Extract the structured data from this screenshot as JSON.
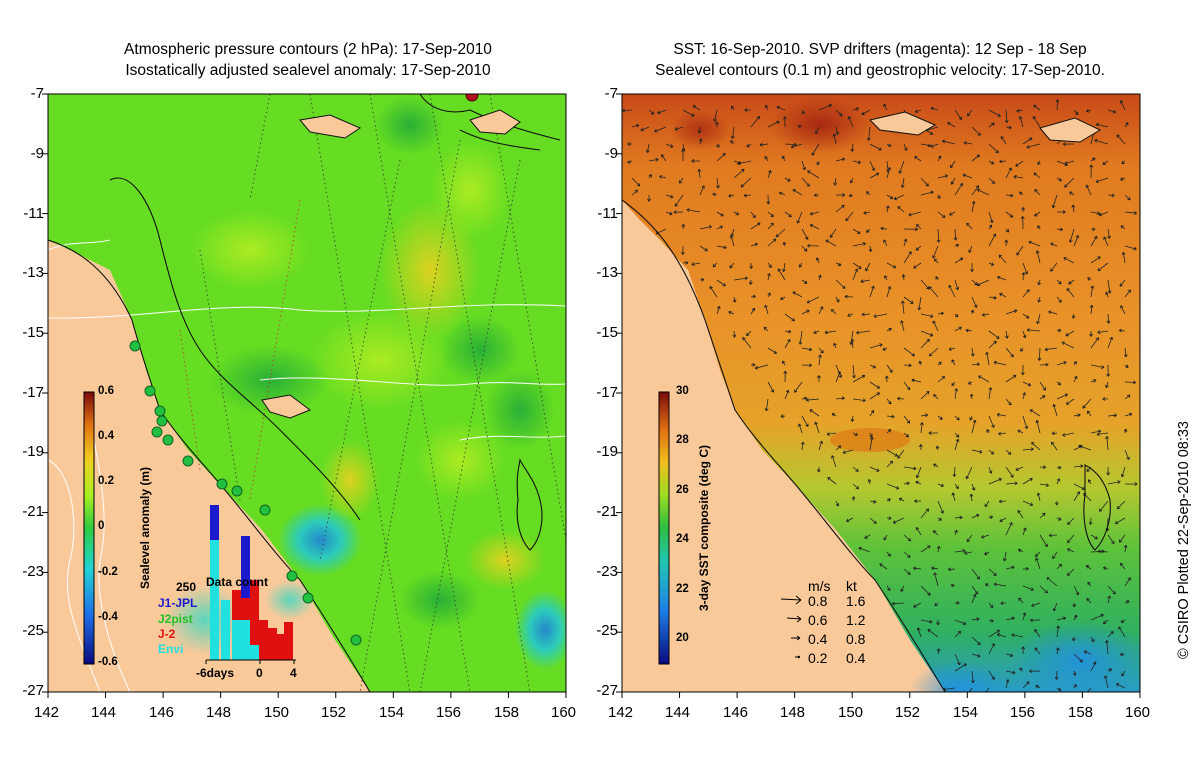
{
  "left_panel": {
    "title_line1": "Atmospheric pressure contours (2 hPa): 17-Sep-2010",
    "title_line2": "Isostatically adjusted sealevel anomaly: 17-Sep-2010",
    "colorbar": {
      "label": "Sealevel anomaly (m)",
      "ticks": [
        "0.6",
        "0.4",
        "0.2",
        "0",
        "-0.2",
        "-0.4",
        "-0.6"
      ],
      "range": [
        -0.6,
        0.6
      ]
    },
    "data_count": {
      "title": "Data count",
      "max_label": "250",
      "legend": [
        {
          "name": "J1-JPL",
          "color": "#1a1acc"
        },
        {
          "name": "J2pist",
          "color": "#22c022"
        },
        {
          "name": "J-2",
          "color": "#e01010"
        },
        {
          "name": "Envi",
          "color": "#20e0e0"
        }
      ],
      "x_ticks": [
        "-6days",
        "0",
        "4"
      ]
    }
  },
  "right_panel": {
    "title_line1": "SST: 16-Sep-2010. SVP drifters (magenta): 12 Sep - 18 Sep",
    "title_line2": "Sealevel contours (0.1 m) and geostrophic velocity: 17-Sep-2010.",
    "colorbar": {
      "label": "3-day SST composite (deg C)",
      "ticks": [
        "30",
        "28",
        "26",
        "24",
        "22",
        "20"
      ],
      "range": [
        19,
        30
      ]
    },
    "velocity_scale": {
      "header_ms": "m/s",
      "header_kt": "kt",
      "rows": [
        {
          "ms": "0.8",
          "kt": "1.6"
        },
        {
          "ms": "0.6",
          "kt": "1.2"
        },
        {
          "ms": "0.4",
          "kt": "0.8"
        },
        {
          "ms": "0.2",
          "kt": "0.4"
        }
      ]
    }
  },
  "axes": {
    "y_ticks": [
      "-7",
      "-9",
      "-11",
      "-13",
      "-15",
      "-17",
      "-19",
      "-21",
      "-23",
      "-25",
      "-27"
    ],
    "x_ticks": [
      "142",
      "144",
      "146",
      "148",
      "150",
      "152",
      "154",
      "156",
      "158",
      "160"
    ],
    "lat_range": [
      -27,
      -7
    ],
    "lon_range": [
      142,
      160
    ]
  },
  "credit": "© CSIRO Plotted 22-Sep-2010 08:33",
  "colors": {
    "land": "#f9c99a",
    "sla_base": "#66dd22",
    "sst_warm": "#e07a20",
    "sst_green": "#3dbb44"
  }
}
